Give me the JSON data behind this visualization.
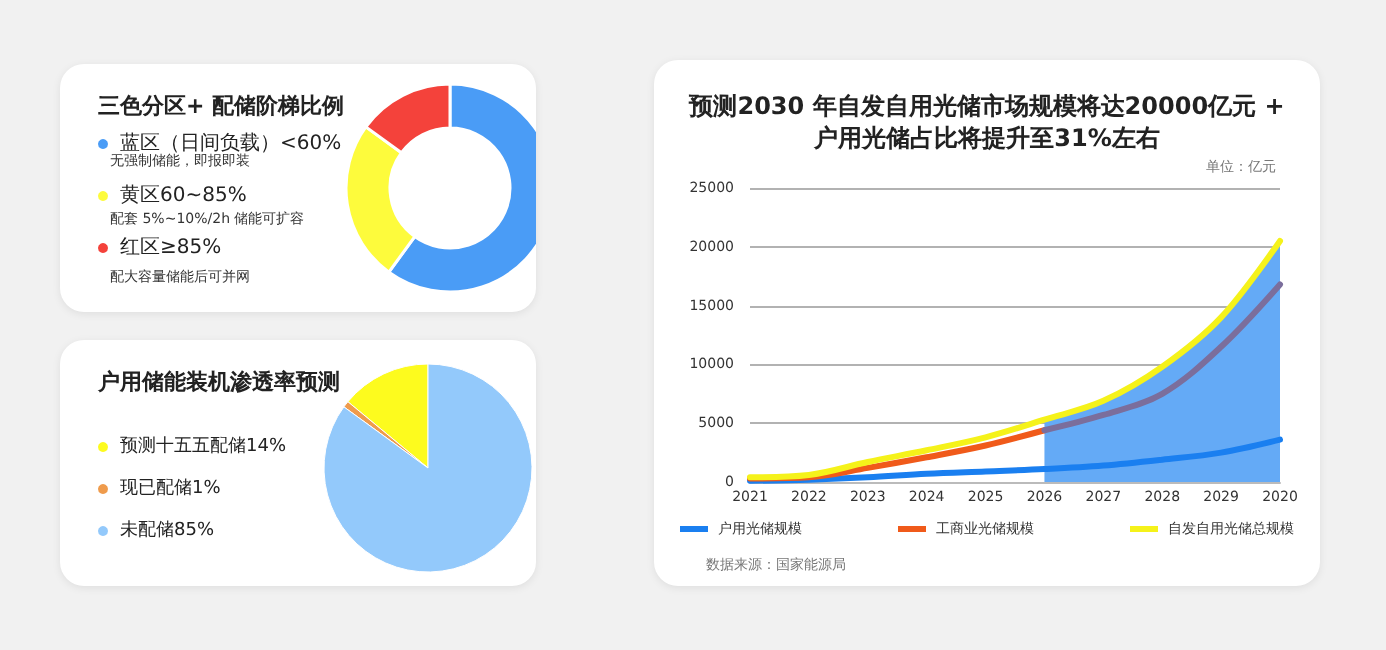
{
  "chart_data": [
    {
      "type": "donut",
      "title": "三色分区+ 配储阶梯比例",
      "categories": [
        "蓝区（日间负载）<60%",
        "黄区60~85%",
        "红区≥85%"
      ],
      "values": [
        60,
        25,
        15
      ],
      "colors": [
        "#4a9cf6",
        "#fdfb3c",
        "#f4423b"
      ],
      "annotations": [
        "无强制储能，即报即装",
        "配套 5%~10%/2h 储能可扩容",
        "配大容量储能后可并网"
      ],
      "legend": "left"
    },
    {
      "type": "pie",
      "title": "户用储能装机渗透率预测",
      "categories": [
        "预测十五五配储14%",
        "现已配储1%",
        "未配储85%"
      ],
      "values": [
        14,
        1,
        85
      ],
      "colors": [
        "#fdfb1e",
        "#ef9b4c",
        "#93c9fb"
      ],
      "legend": "left"
    },
    {
      "type": "line",
      "title": "预测2030 年自发自用光储市场规模将达20000亿元 +\n户用光储占比将提升至31%左右",
      "categories": [
        "2021",
        "2022",
        "2023",
        "2024",
        "2025",
        "2026",
        "2027",
        "2028",
        "2029",
        "2020"
      ],
      "ylim": [
        0,
        25000
      ],
      "yticks": [
        0,
        5000,
        10000,
        15000,
        20000,
        25000
      ],
      "grid": "y",
      "legend": "bottom",
      "annotations": [
        "单位：亿元",
        "数据来源：国家能源局"
      ],
      "series": [
        {
          "type": "area",
          "color": "#64aaf6",
          "values": [
            null,
            null,
            null,
            null,
            null,
            5300,
            6900,
            9800,
            14000,
            20500
          ]
        },
        {
          "name": "户用光储规模",
          "color": "#1a7ff0",
          "values": [
            100,
            200,
            400,
            700,
            900,
            1100,
            1400,
            1900,
            2500,
            3600
          ]
        },
        {
          "name": "工商业光储规模",
          "color": "#f05a1a",
          "values": [
            300,
            400,
            1200,
            2100,
            3100,
            4400,
            null,
            null,
            null,
            null
          ]
        },
        {
          "color": "#7b6e9c",
          "values": [
            null,
            null,
            null,
            null,
            null,
            4400,
            5700,
            7500,
            11500,
            16800
          ]
        },
        {
          "name": "自发自用光储总规模",
          "color": "#f5f21a",
          "values": [
            400,
            600,
            1700,
            2700,
            3800,
            5300,
            6900,
            9800,
            14000,
            20500
          ]
        }
      ]
    }
  ]
}
